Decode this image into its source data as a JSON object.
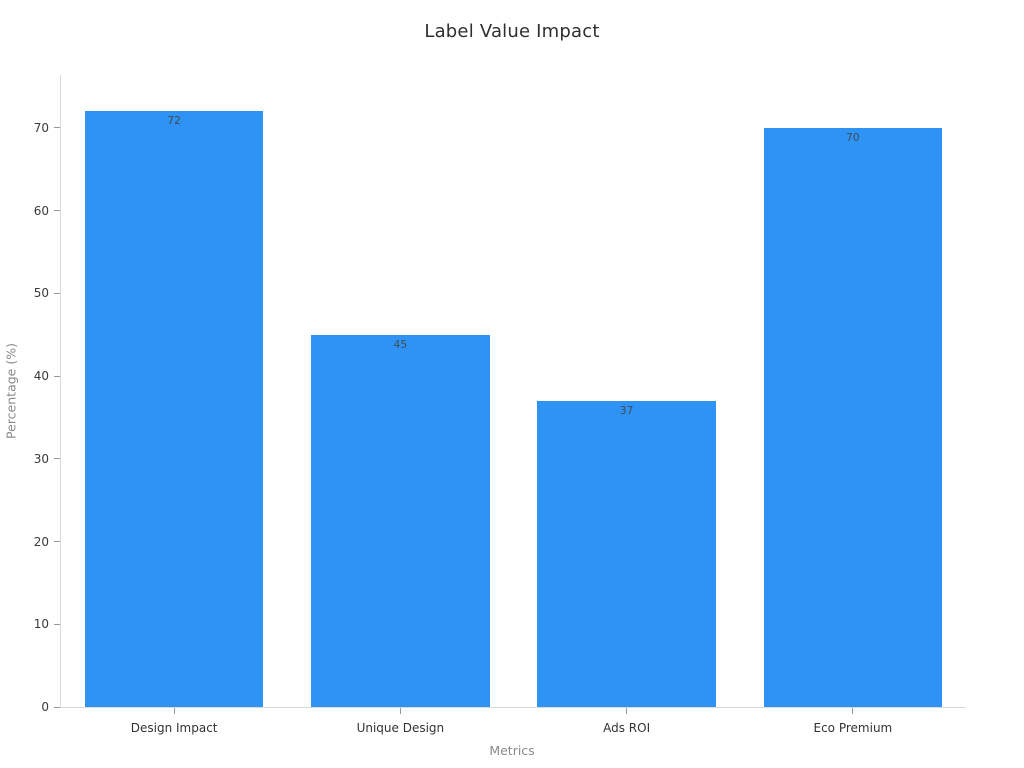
{
  "figure": {
    "title": "Label Value Impact"
  },
  "chart_data": {
    "type": "bar",
    "title": "Label Value Impact",
    "xlabel": "Metrics",
    "ylabel": "Percentage (%)",
    "categories": [
      "Design Impact",
      "Unique Design",
      "Ads ROI",
      "Eco Premium"
    ],
    "values": [
      72,
      45,
      37,
      70
    ],
    "value_labels": [
      "72",
      "45",
      "37",
      "70"
    ],
    "value_label_position": "inside-top",
    "yticks": [
      0,
      10,
      20,
      30,
      40,
      50,
      60,
      70
    ],
    "ylim": [
      0,
      76.4
    ],
    "grid": false,
    "legend": "none",
    "bar_color": "#2e93f5",
    "bar_width_fraction": 0.79,
    "axis_line_color": "#d9d9d9",
    "tick_color": "#999999",
    "tick_label_color": "#3a3a3a",
    "axis_title_color": "#8a8a8a",
    "title_color": "#2f2f2f",
    "value_label_color": "#404a52",
    "background_color": "#ffffff"
  }
}
